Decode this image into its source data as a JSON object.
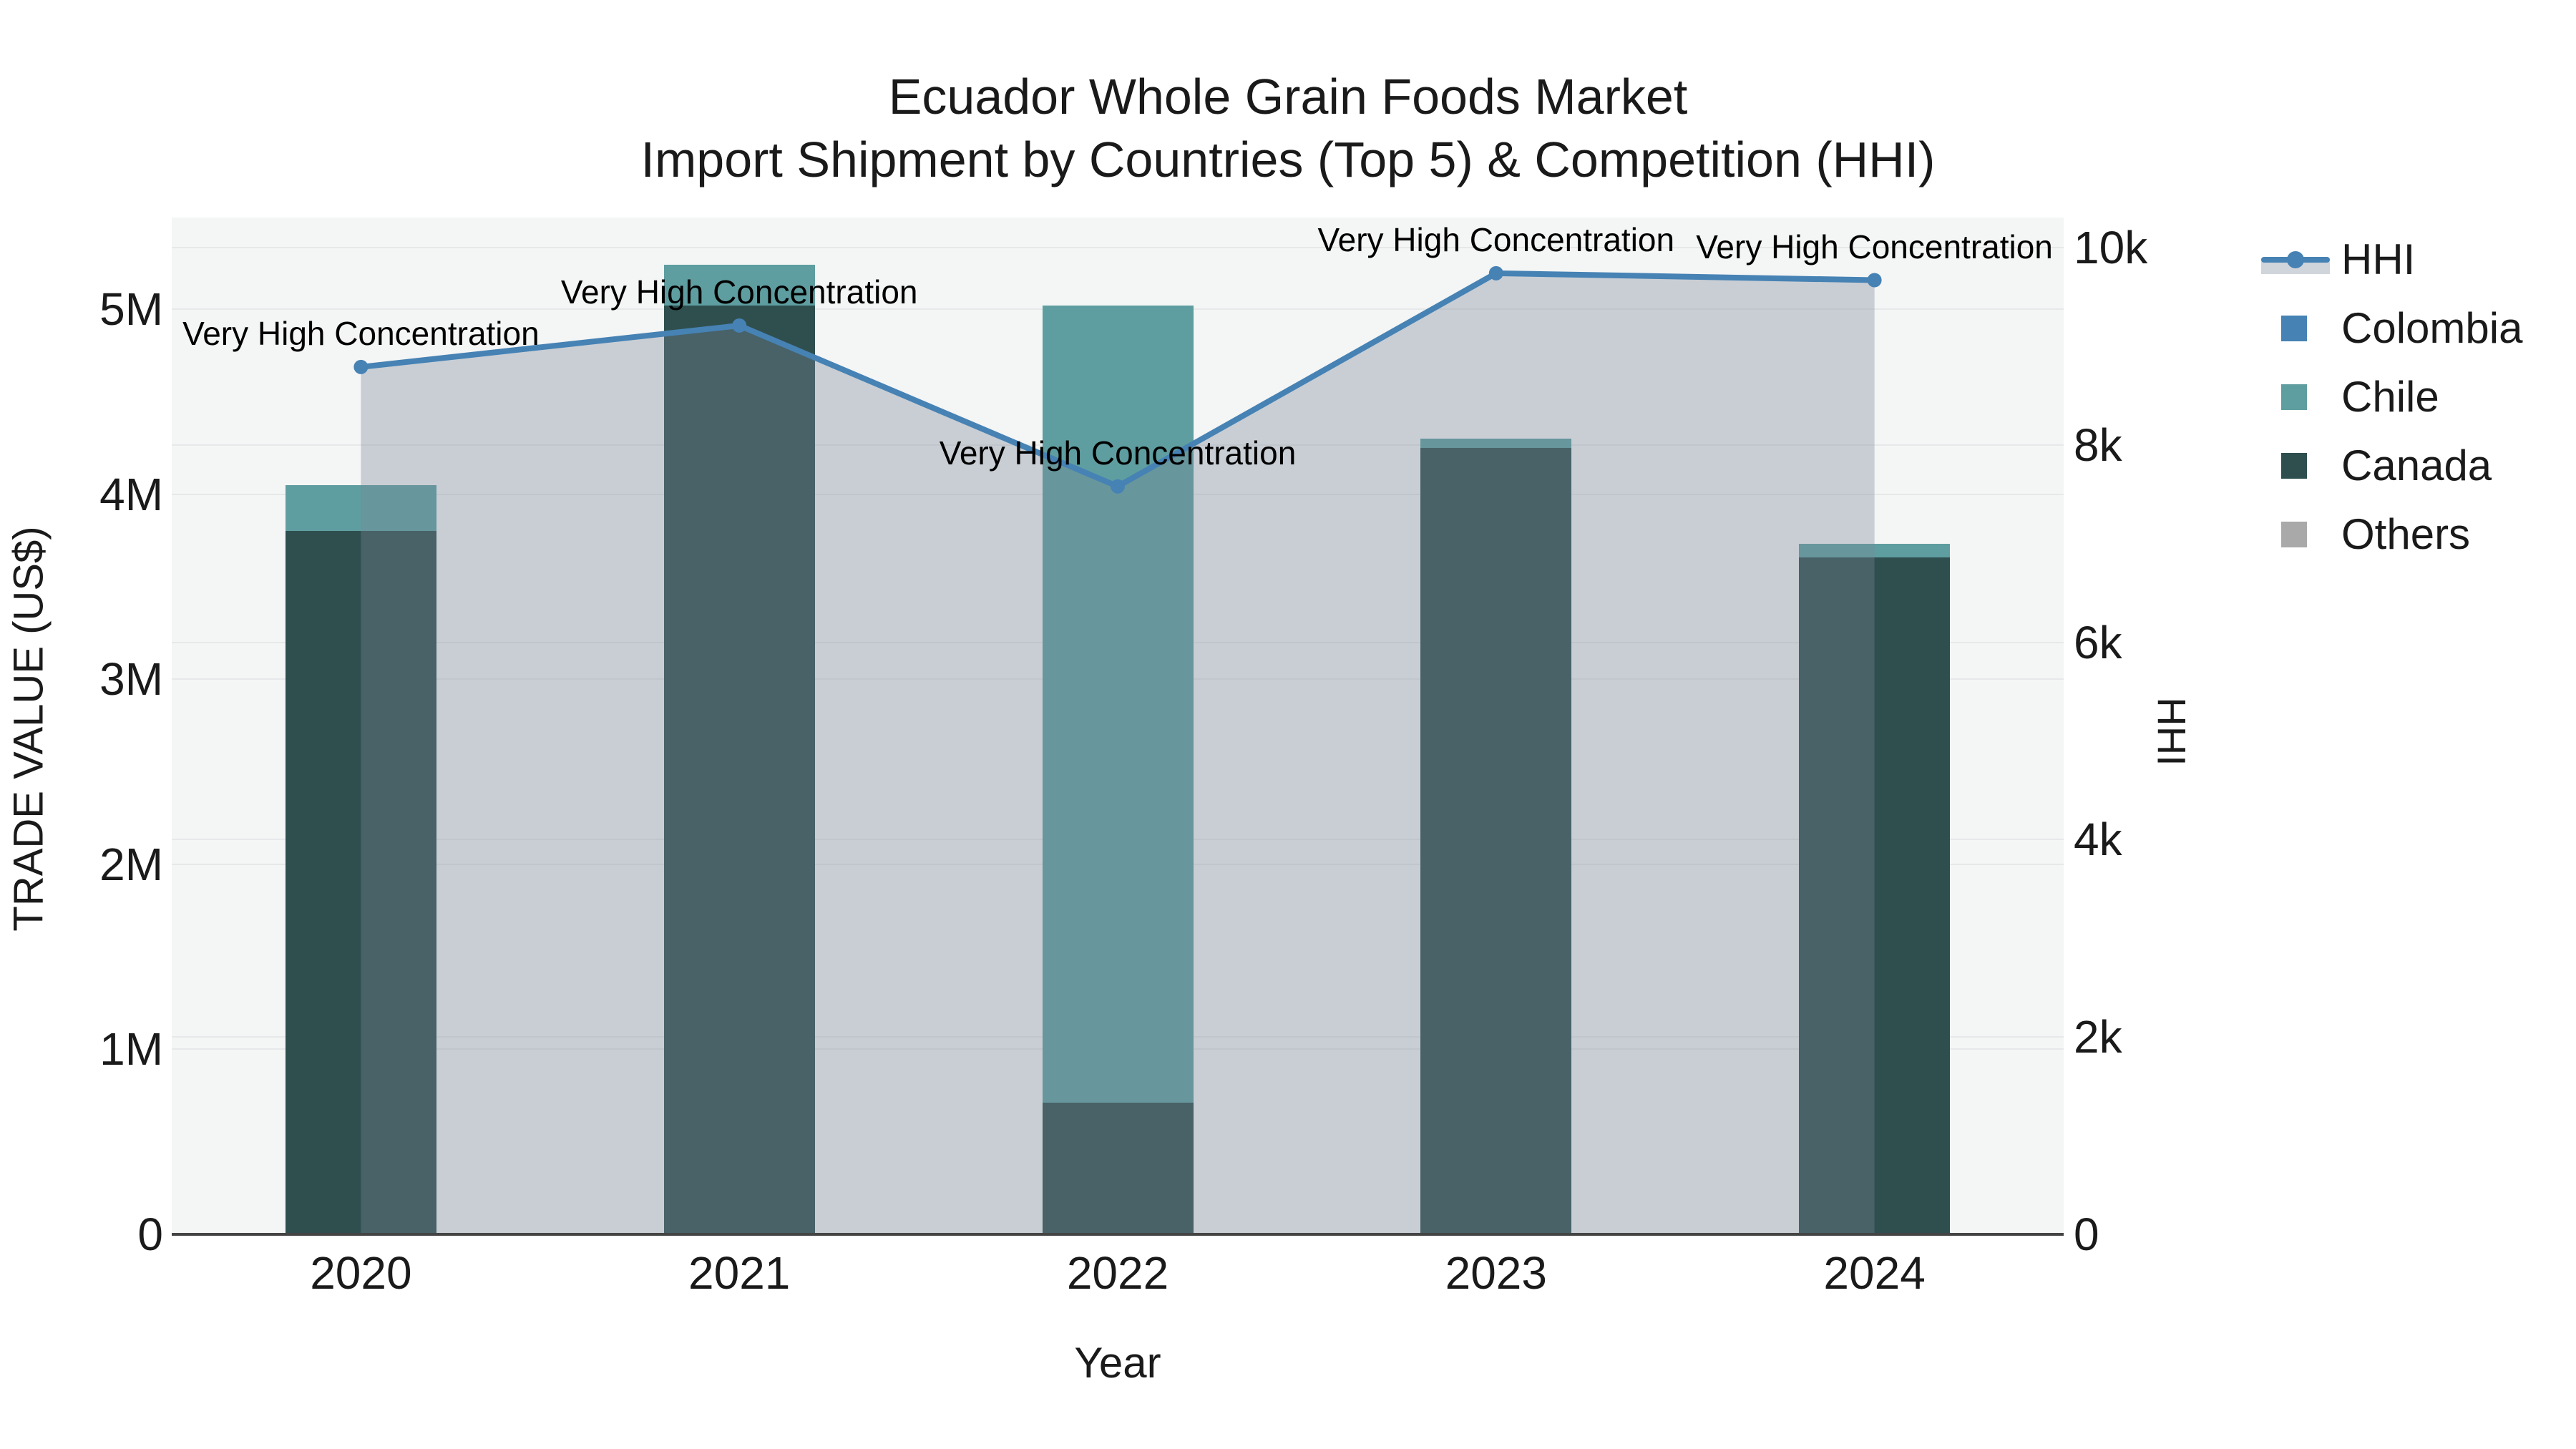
{
  "title": {
    "line1": "Ecuador Whole Grain Foods Market",
    "line2": "Import Shipment by Countries (Top 5) & Competition (HHI)"
  },
  "axes": {
    "y_left": {
      "title": "TRADE VALUE (US$)",
      "ticks": [
        "0",
        "1M",
        "2M",
        "3M",
        "4M",
        "5M"
      ],
      "range": [
        0,
        5000000
      ]
    },
    "y_right": {
      "title": "HHI",
      "ticks": [
        "0",
        "2k",
        "4k",
        "6k",
        "8k",
        "10k"
      ],
      "range": [
        0,
        10000
      ]
    },
    "x": {
      "title": "Year",
      "categories": [
        "2020",
        "2021",
        "2022",
        "2023",
        "2024"
      ]
    }
  },
  "legend": [
    {
      "label": "HHI",
      "type": "line",
      "color": "#4682B4"
    },
    {
      "label": "Colombia",
      "type": "square",
      "color": "#4682B4"
    },
    {
      "label": "Chile",
      "type": "square",
      "color": "#5F9EA0"
    },
    {
      "label": "Canada",
      "type": "square",
      "color": "#2F4F4F"
    },
    {
      "label": "Others",
      "type": "square",
      "color": "#A9A9A9"
    }
  ],
  "colors": {
    "hhi_line": "#4682B4",
    "hhi_fill": "rgba(119,136,153,0.35)",
    "colombia": "#4682B4",
    "chile": "#5F9EA0",
    "canada": "#2F4F4F",
    "others": "#A9A9A9",
    "plot_background": "#f4f5f5",
    "gridline": "#e6e8e9",
    "axis_line": "#444444"
  },
  "chart_data": {
    "type": "bar+line",
    "categories": [
      "2020",
      "2021",
      "2022",
      "2023",
      "2024"
    ],
    "stack_order_bottom_to_top": [
      "Canada",
      "Chile",
      "Colombia",
      "Others"
    ],
    "series": [
      {
        "name": "Colombia",
        "type": "bar",
        "axis": "left",
        "color": "#4682B4",
        "values": [
          0,
          0,
          0,
          0,
          0
        ]
      },
      {
        "name": "Chile",
        "type": "bar",
        "axis": "left",
        "color": "#5F9EA0",
        "values": [
          250000,
          220000,
          4310000,
          50000,
          70000
        ]
      },
      {
        "name": "Canada",
        "type": "bar",
        "axis": "left",
        "color": "#2F4F4F",
        "values": [
          3800000,
          5020000,
          710000,
          4250000,
          3660000
        ]
      },
      {
        "name": "Others",
        "type": "bar",
        "axis": "left",
        "color": "#A9A9A9",
        "values": [
          0,
          0,
          0,
          0,
          0
        ]
      },
      {
        "name": "HHI",
        "type": "line",
        "axis": "right",
        "color": "#4682B4",
        "fill": "rgba(119,136,153,0.35)",
        "values": [
          8790,
          9210,
          7580,
          9740,
          9670
        ]
      }
    ],
    "bar_totals": [
      4050000,
      5240000,
      5020000,
      4300000,
      3730000
    ],
    "annotations": [
      {
        "year": "2020",
        "text": "Very High Concentration"
      },
      {
        "year": "2021",
        "text": "Very High Concentration"
      },
      {
        "year": "2022",
        "text": "Very High Concentration"
      },
      {
        "year": "2023",
        "text": "Very High Concentration"
      },
      {
        "year": "2024",
        "text": "Very High Concentration"
      }
    ],
    "xlabel": "Year",
    "ylabel_left": "TRADE VALUE (US$)",
    "ylabel_right": "HHI",
    "ylim_left": [
      0,
      5000000
    ],
    "ylim_right": [
      0,
      10000
    ],
    "grid": true,
    "legend_position": "right"
  }
}
